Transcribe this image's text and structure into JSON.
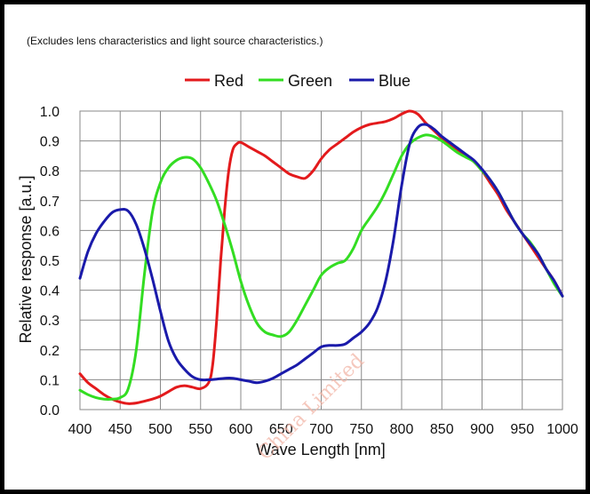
{
  "chart_data": {
    "type": "line",
    "note": "(Excludes lens characteristics and light source characteristics.)",
    "title": "",
    "xlabel": "Wave Length [nm]",
    "ylabel": "Relative response [a.u.]",
    "xlim": [
      400,
      1000
    ],
    "ylim": [
      0,
      1.0
    ],
    "x_ticks": [
      "400",
      "450",
      "500",
      "550",
      "600",
      "650",
      "700",
      "750",
      "800",
      "850",
      "900",
      "950",
      "1000"
    ],
    "y_ticks": [
      "0.0",
      "0.1",
      "0.2",
      "0.3",
      "0.4",
      "0.5",
      "0.6",
      "0.7",
      "0.8",
      "0.9",
      "1.0"
    ],
    "grid": true,
    "legend_position": "top",
    "watermark": "China Limited",
    "series": [
      {
        "name": "Red",
        "color": "#e31a1c",
        "x": [
          400,
          410,
          420,
          430,
          440,
          450,
          460,
          470,
          480,
          490,
          500,
          510,
          520,
          530,
          540,
          550,
          560,
          565,
          570,
          575,
          580,
          585,
          590,
          595,
          600,
          610,
          620,
          630,
          640,
          650,
          660,
          670,
          680,
          690,
          700,
          710,
          720,
          730,
          740,
          750,
          760,
          770,
          780,
          790,
          800,
          810,
          820,
          830,
          840,
          850,
          860,
          870,
          880,
          890,
          900,
          910,
          920,
          930,
          940,
          950,
          960,
          970,
          980,
          990,
          1000
        ],
        "y": [
          0.12,
          0.09,
          0.07,
          0.05,
          0.035,
          0.025,
          0.02,
          0.022,
          0.028,
          0.035,
          0.045,
          0.06,
          0.075,
          0.08,
          0.075,
          0.07,
          0.09,
          0.15,
          0.3,
          0.5,
          0.67,
          0.8,
          0.87,
          0.89,
          0.895,
          0.88,
          0.865,
          0.85,
          0.83,
          0.81,
          0.79,
          0.78,
          0.775,
          0.8,
          0.84,
          0.87,
          0.89,
          0.91,
          0.93,
          0.945,
          0.955,
          0.96,
          0.965,
          0.975,
          0.99,
          1.0,
          0.99,
          0.96,
          0.935,
          0.91,
          0.89,
          0.87,
          0.85,
          0.83,
          0.8,
          0.76,
          0.72,
          0.67,
          0.63,
          0.59,
          0.55,
          0.51,
          0.47,
          0.43,
          0.38
        ]
      },
      {
        "name": "Green",
        "color": "#33dd22",
        "x": [
          400,
          410,
          420,
          430,
          440,
          450,
          460,
          470,
          480,
          490,
          500,
          510,
          520,
          530,
          540,
          550,
          560,
          570,
          580,
          590,
          600,
          610,
          620,
          630,
          640,
          650,
          660,
          670,
          680,
          690,
          700,
          710,
          720,
          730,
          740,
          750,
          760,
          770,
          780,
          790,
          800,
          810,
          820,
          830,
          840,
          850,
          860,
          870,
          880,
          890,
          900,
          910,
          920,
          930,
          940,
          950,
          960,
          970,
          980,
          990,
          1000
        ],
        "y": [
          0.065,
          0.05,
          0.04,
          0.035,
          0.035,
          0.04,
          0.07,
          0.2,
          0.45,
          0.66,
          0.76,
          0.81,
          0.835,
          0.845,
          0.84,
          0.81,
          0.76,
          0.7,
          0.62,
          0.53,
          0.43,
          0.35,
          0.29,
          0.26,
          0.25,
          0.245,
          0.26,
          0.3,
          0.35,
          0.4,
          0.45,
          0.475,
          0.49,
          0.5,
          0.54,
          0.6,
          0.64,
          0.68,
          0.73,
          0.79,
          0.85,
          0.89,
          0.91,
          0.92,
          0.915,
          0.9,
          0.88,
          0.86,
          0.845,
          0.83,
          0.8,
          0.77,
          0.73,
          0.68,
          0.63,
          0.59,
          0.56,
          0.52,
          0.47,
          0.42,
          0.38
        ]
      },
      {
        "name": "Blue",
        "color": "#1a1aaa",
        "x": [
          400,
          410,
          420,
          430,
          440,
          450,
          460,
          470,
          480,
          490,
          500,
          510,
          520,
          530,
          540,
          550,
          560,
          570,
          580,
          590,
          600,
          610,
          620,
          630,
          640,
          650,
          660,
          670,
          680,
          690,
          700,
          710,
          720,
          730,
          740,
          750,
          760,
          770,
          780,
          790,
          800,
          810,
          820,
          830,
          840,
          850,
          860,
          870,
          880,
          890,
          900,
          910,
          920,
          930,
          940,
          950,
          960,
          970,
          980,
          990,
          1000
        ],
        "y": [
          0.44,
          0.53,
          0.59,
          0.63,
          0.66,
          0.67,
          0.665,
          0.62,
          0.54,
          0.44,
          0.33,
          0.23,
          0.17,
          0.135,
          0.11,
          0.1,
          0.1,
          0.102,
          0.105,
          0.105,
          0.1,
          0.095,
          0.09,
          0.095,
          0.105,
          0.12,
          0.135,
          0.15,
          0.17,
          0.19,
          0.21,
          0.215,
          0.215,
          0.22,
          0.24,
          0.26,
          0.29,
          0.34,
          0.43,
          0.57,
          0.75,
          0.89,
          0.945,
          0.955,
          0.94,
          0.915,
          0.895,
          0.875,
          0.855,
          0.835,
          0.805,
          0.77,
          0.73,
          0.68,
          0.63,
          0.59,
          0.555,
          0.52,
          0.47,
          0.43,
          0.38
        ]
      }
    ]
  }
}
